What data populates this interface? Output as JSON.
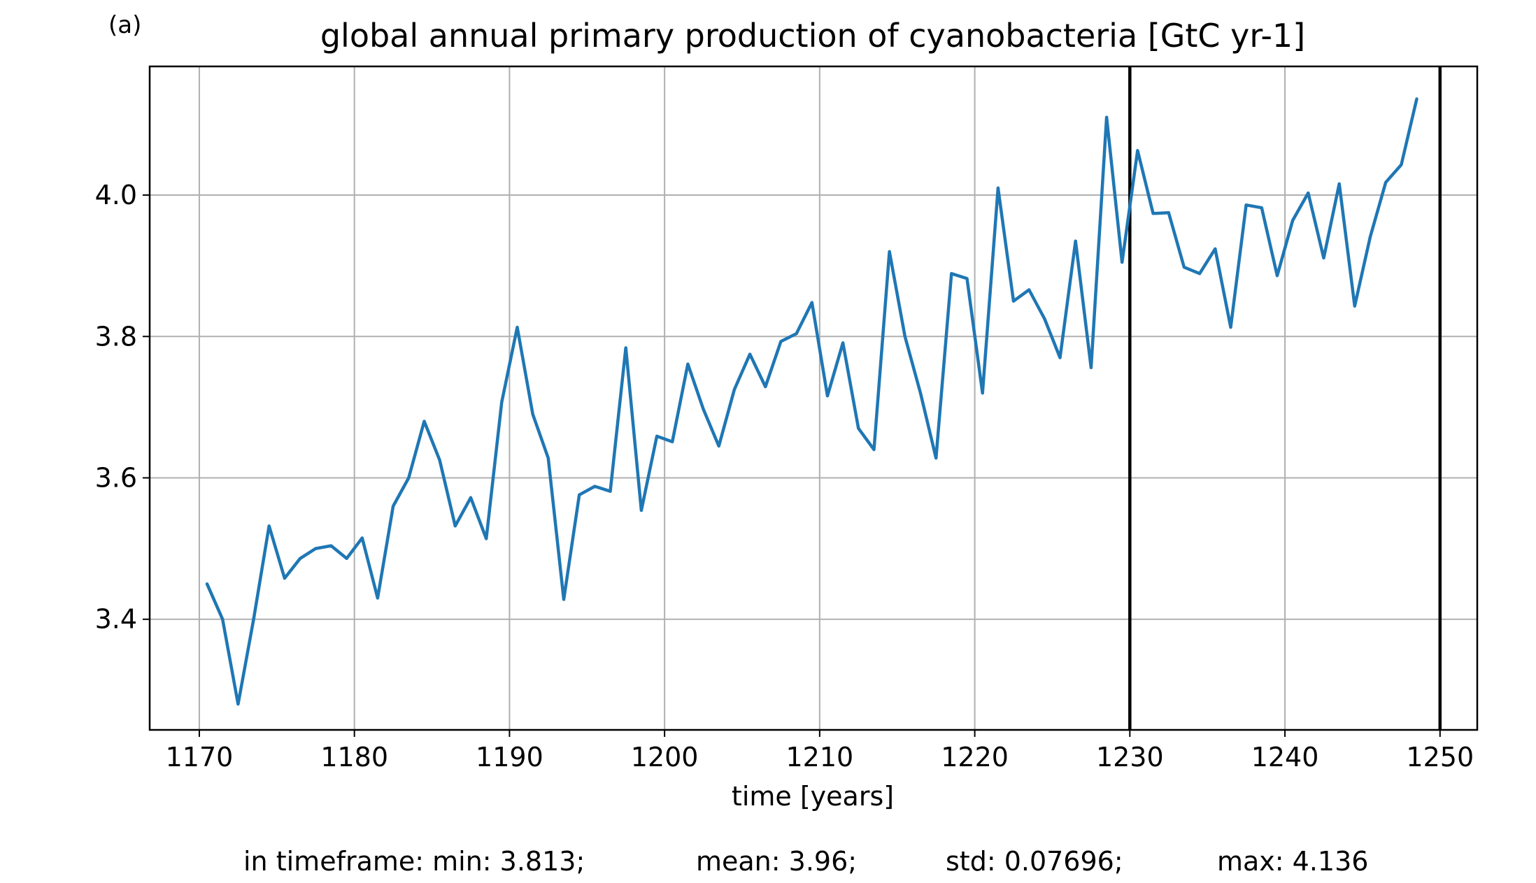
{
  "panel_label": "(a)",
  "chart_data": {
    "type": "line",
    "title": "global annual primary production of cyanobacteria [GtC yr-1]",
    "xlabel": "time [years]",
    "ylabel": "",
    "xlim": [
      1166.8,
      1252.4
    ],
    "ylim": [
      3.2435,
      4.182
    ],
    "xticks": [
      1170,
      1180,
      1190,
      1200,
      1210,
      1220,
      1230,
      1240,
      1250
    ],
    "yticks": [
      3.4,
      3.6,
      3.8,
      4.0
    ],
    "ytick_labels": [
      "3.4",
      "3.6",
      "3.8",
      "4.0"
    ],
    "grid": true,
    "line_color": "#1f77b4",
    "vlines": [
      1230,
      1250
    ],
    "vline_color": "#000000",
    "series": [
      {
        "x": [
          1170.5,
          1171.5,
          1172.5,
          1173.5,
          1174.5,
          1175.5,
          1176.5,
          1177.5,
          1178.5,
          1179.5,
          1180.5,
          1181.5,
          1182.5,
          1183.5,
          1184.5,
          1185.5,
          1186.5,
          1187.5,
          1188.5,
          1189.5,
          1190.5,
          1191.5,
          1192.5,
          1193.5,
          1194.5,
          1195.5,
          1196.5,
          1197.5,
          1198.5,
          1199.5,
          1200.5,
          1201.5,
          1202.5,
          1203.5,
          1204.5,
          1205.5,
          1206.5,
          1207.5,
          1208.5,
          1209.5,
          1210.5,
          1211.5,
          1212.5,
          1213.5,
          1214.5,
          1215.5,
          1216.5,
          1217.5,
          1218.5,
          1219.5,
          1220.5,
          1221.5,
          1222.5,
          1223.5,
          1224.5,
          1225.5,
          1226.5,
          1227.5,
          1228.5,
          1229.5,
          1230.5,
          1231.5,
          1232.5,
          1233.5,
          1234.5,
          1235.5,
          1236.5,
          1237.5,
          1238.5,
          1239.5,
          1240.5,
          1241.5,
          1242.5,
          1243.5,
          1244.5,
          1245.5,
          1246.5,
          1247.5,
          1248.5
        ],
        "y": [
          3.45,
          3.4,
          3.28,
          3.4,
          3.532,
          3.458,
          3.486,
          3.5,
          3.504,
          3.486,
          3.515,
          3.43,
          3.56,
          3.6,
          3.68,
          3.625,
          3.532,
          3.572,
          3.514,
          3.707,
          3.813,
          3.69,
          3.628,
          3.428,
          3.576,
          3.588,
          3.581,
          3.784,
          3.554,
          3.659,
          3.651,
          3.761,
          3.697,
          3.645,
          3.725,
          3.775,
          3.729,
          3.793,
          3.804,
          3.848,
          3.716,
          3.791,
          3.67,
          3.64,
          3.92,
          3.8,
          3.72,
          3.628,
          3.889,
          3.882,
          3.72,
          4.01,
          3.85,
          3.866,
          3.825,
          3.77,
          3.935,
          3.756,
          4.11,
          3.905,
          4.063,
          3.974,
          3.975,
          3.898,
          3.889,
          3.924,
          3.813,
          3.986,
          3.982,
          3.886,
          3.964,
          4.003,
          3.911,
          4.016,
          3.843,
          3.941,
          4.018,
          4.043,
          4.136
        ]
      }
    ],
    "stats_text": {
      "min": "in timeframe: min: 3.813;",
      "mean": "mean: 3.96;",
      "std": "std: 0.07696;",
      "max": "max: 4.136"
    }
  }
}
